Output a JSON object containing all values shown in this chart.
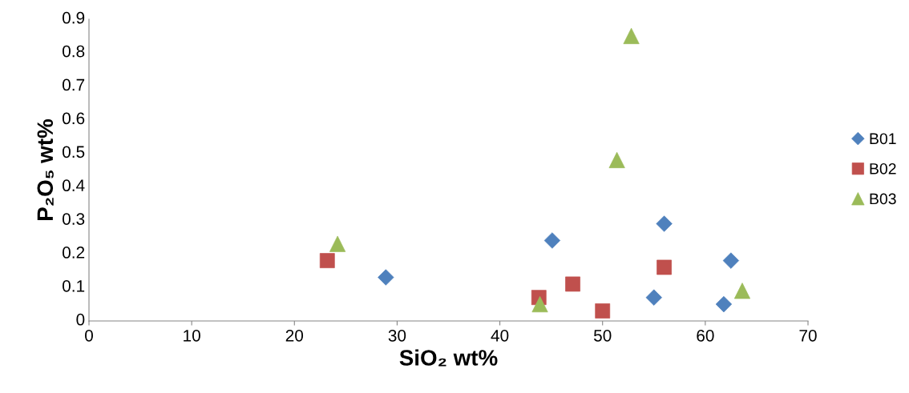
{
  "chart_data": {
    "type": "scatter",
    "xlabel": "SiO₂ wt%",
    "ylabel": "P₂O₅ wt%",
    "xlim": [
      0,
      70
    ],
    "xticks": [
      0,
      10,
      20,
      30,
      40,
      50,
      60,
      70
    ],
    "ylim": [
      0,
      0.9
    ],
    "yticks": [
      0,
      0.1,
      0.2,
      0.3,
      0.4,
      0.5,
      0.6,
      0.7,
      0.8,
      0.9
    ],
    "grid": false,
    "legend": "right",
    "series": [
      {
        "name": "B01",
        "color": "#4f81bd",
        "marker": "diamond",
        "x": [
          28.9,
          45.1,
          55.0,
          56.0,
          61.8,
          62.5
        ],
        "values": [
          0.13,
          0.24,
          0.07,
          0.29,
          0.05,
          0.18
        ]
      },
      {
        "name": "B02",
        "color": "#c0504d",
        "marker": "square",
        "x": [
          23.2,
          43.8,
          47.1,
          50.0,
          56.0
        ],
        "values": [
          0.18,
          0.07,
          0.11,
          0.03,
          0.16
        ]
      },
      {
        "name": "B03",
        "color": "#9bbb59",
        "marker": "triangle",
        "x": [
          24.2,
          43.9,
          51.4,
          52.8,
          63.6
        ],
        "values": [
          0.23,
          0.05,
          0.48,
          0.85,
          0.09
        ]
      }
    ]
  }
}
